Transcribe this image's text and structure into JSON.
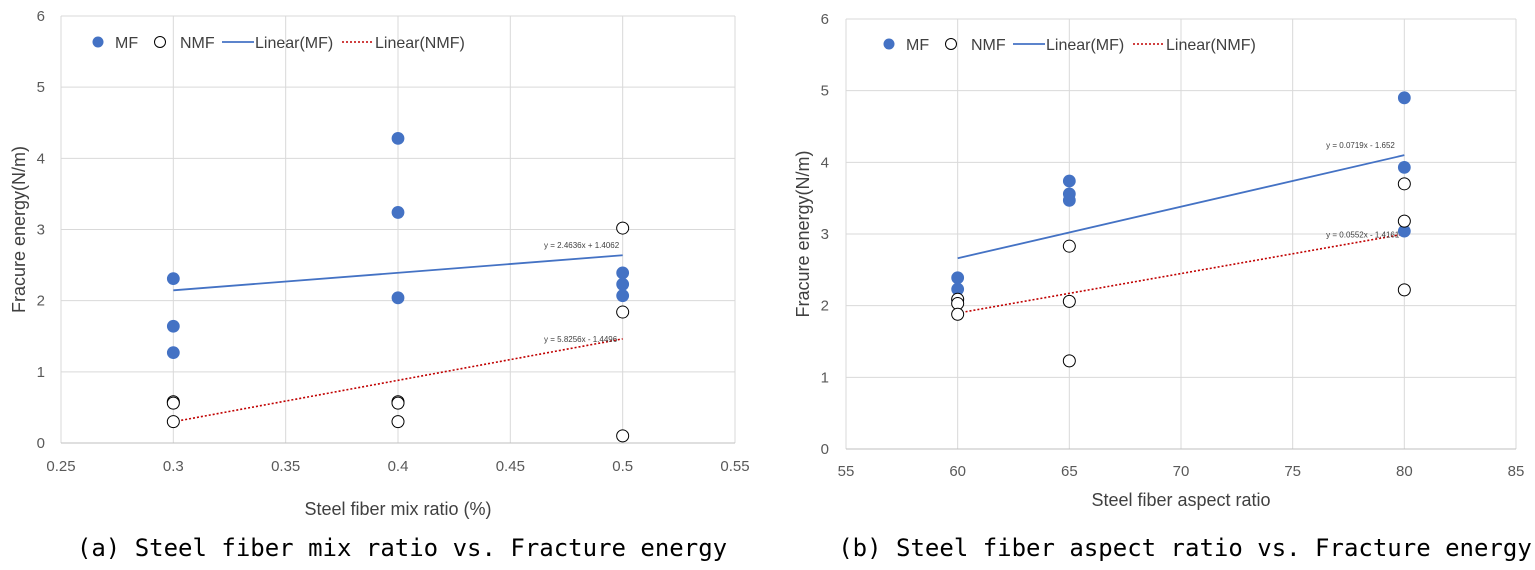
{
  "chart_data": [
    {
      "type": "scatter",
      "xlabel": "Steel fiber mix ratio (%)",
      "ylabel": "Fracure energy(N/m)",
      "caption": "(a) Steel fiber mix ratio vs. Fracture energy",
      "xlim": [
        0.25,
        0.55
      ],
      "ylim": [
        0,
        6
      ],
      "xticks": [
        "0.25",
        "0.3",
        "0.35",
        "0.4",
        "0.45",
        "0.5",
        "0.55"
      ],
      "yticks": [
        "0",
        "1",
        "2",
        "3",
        "4",
        "5",
        "6"
      ],
      "grid": true,
      "legend_position": "top-left",
      "legend": [
        "MF",
        "NMF",
        "Linear(MF)",
        "Linear(NMF)"
      ],
      "series": [
        {
          "name": "MF",
          "marker": "filled",
          "color": "#4472C4",
          "points": [
            [
              0.3,
              2.31
            ],
            [
              0.3,
              1.64
            ],
            [
              0.3,
              1.27
            ],
            [
              0.4,
              4.28
            ],
            [
              0.4,
              3.24
            ],
            [
              0.4,
              2.04
            ],
            [
              0.5,
              2.39
            ],
            [
              0.5,
              2.23
            ],
            [
              0.5,
              2.07
            ]
          ]
        },
        {
          "name": "NMF",
          "marker": "open",
          "color": "#000000",
          "points": [
            [
              0.3,
              0.58
            ],
            [
              0.3,
              0.56
            ],
            [
              0.3,
              0.3
            ],
            [
              0.4,
              0.58
            ],
            [
              0.4,
              0.56
            ],
            [
              0.4,
              0.3
            ],
            [
              0.5,
              3.02
            ],
            [
              0.5,
              1.84
            ],
            [
              0.5,
              0.1
            ]
          ]
        }
      ],
      "trendlines": [
        {
          "name": "Linear(MF)",
          "style": "solid",
          "color": "#4472C4",
          "slope": 2.4636,
          "intercept": 1.4062,
          "x_range": [
            0.3,
            0.5
          ],
          "label": "y = 2.4636x + 1.4062",
          "label_x": 0.465,
          "label_y": 2.74
        },
        {
          "name": "Linear(NMF)",
          "style": "dotted",
          "color": "#C00000",
          "slope": 5.8256,
          "intercept": -1.4496,
          "x_range": [
            0.3,
            0.5
          ],
          "label": "y = 5.8256x - 1.4496",
          "label_x": 0.465,
          "label_y": 1.42
        }
      ]
    },
    {
      "type": "scatter",
      "xlabel": "Steel fiber aspect ratio",
      "ylabel": "Fracure energy(N/m)",
      "caption": "(b) Steel fiber aspect ratio vs. Fracture energy",
      "xlim": [
        55,
        85
      ],
      "ylim": [
        0,
        6
      ],
      "xticks": [
        "55",
        "60",
        "65",
        "70",
        "75",
        "80",
        "85"
      ],
      "yticks": [
        "0",
        "1",
        "2",
        "3",
        "4",
        "5",
        "6"
      ],
      "grid": true,
      "legend_position": "top-left",
      "legend": [
        "MF",
        "NMF",
        "Linear(MF)",
        "Linear(NMF)"
      ],
      "series": [
        {
          "name": "MF",
          "marker": "filled",
          "color": "#4472C4",
          "points": [
            [
              60,
              2.39
            ],
            [
              60,
              2.23
            ],
            [
              60,
              2.07
            ],
            [
              65,
              3.74
            ],
            [
              65,
              3.56
            ],
            [
              65,
              3.47
            ],
            [
              80,
              4.9
            ],
            [
              80,
              3.93
            ],
            [
              80,
              3.04
            ]
          ]
        },
        {
          "name": "NMF",
          "marker": "open",
          "color": "#000000",
          "points": [
            [
              60,
              2.09
            ],
            [
              60,
              2.03
            ],
            [
              60,
              1.88
            ],
            [
              65,
              2.83
            ],
            [
              65,
              2.06
            ],
            [
              65,
              1.23
            ],
            [
              80,
              3.7
            ],
            [
              80,
              3.18
            ],
            [
              80,
              2.22
            ]
          ]
        }
      ],
      "trendlines": [
        {
          "name": "Linear(MF)",
          "style": "solid",
          "color": "#4472C4",
          "slope": 0.0719,
          "intercept": -1.652,
          "x_range": [
            60,
            80
          ],
          "label": "y = 0.0719x - 1.652",
          "label_x": 76.5,
          "label_y": 4.2
        },
        {
          "name": "Linear(NMF)",
          "style": "dotted",
          "color": "#C00000",
          "slope": 0.0552,
          "intercept": -1.4161,
          "x_range": [
            60,
            80
          ],
          "label": "y = 0.0552x - 1.4161",
          "label_x": 76.5,
          "label_y": 2.95
        }
      ]
    }
  ]
}
